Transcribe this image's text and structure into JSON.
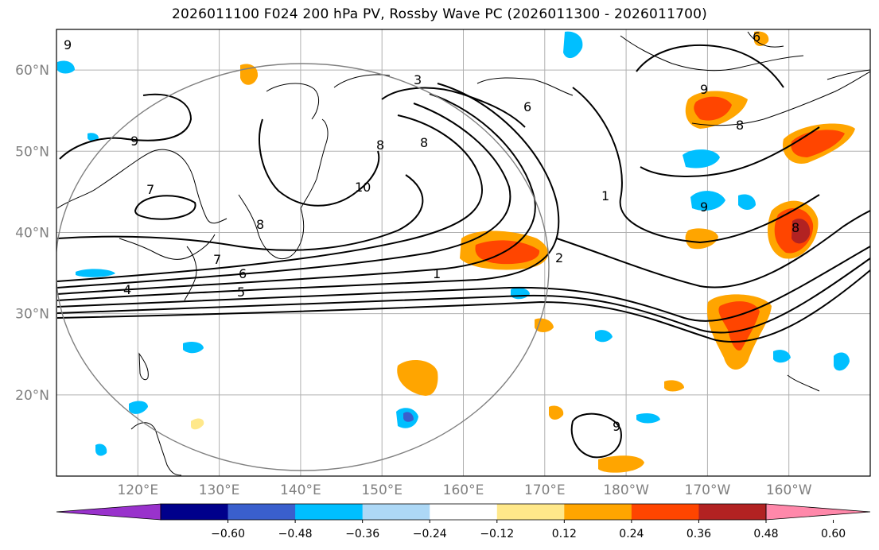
{
  "title": "2026011100 F024 200 hPa PV, Rossby Wave PC (2026011300 - 2026011700)",
  "lat_ticks": [
    "60°N",
    "50°N",
    "40°N",
    "30°N",
    "20°N"
  ],
  "lon_ticks": [
    "120°E",
    "130°E",
    "140°E",
    "150°E",
    "160°E",
    "170°E",
    "180°W",
    "170°W",
    "160°W"
  ],
  "contour_labels": [
    "9",
    "9",
    "9",
    "9",
    "8",
    "8",
    "8",
    "8",
    "10",
    "7",
    "7",
    "6",
    "5",
    "4",
    "3",
    "2",
    "1",
    "1",
    "6",
    "9",
    "6",
    "8"
  ],
  "colorbar": {
    "ticks": [
      "−0.60",
      "−0.48",
      "−0.36",
      "−0.24",
      "−0.12",
      "0.12",
      "0.24",
      "0.36",
      "0.48",
      "0.60"
    ],
    "colors": [
      "#9932cc",
      "#00008b",
      "#3a5fcd",
      "#00bfff",
      "#add8f6",
      "#ffffff",
      "#ffe88a",
      "#ffa500",
      "#ff4500",
      "#b22222",
      "#ff88aa"
    ]
  },
  "chart_data": {
    "type": "map",
    "projection": "lat-lon",
    "lon_range": [
      110,
      210
    ],
    "lat_range": [
      10,
      65
    ],
    "field": "200 hPa PV contours with Rossby Wave PC shading",
    "shading_levels": [
      -0.6,
      -0.48,
      -0.36,
      -0.24,
      -0.12,
      0.12,
      0.24,
      0.36,
      0.48,
      0.6
    ]
  }
}
